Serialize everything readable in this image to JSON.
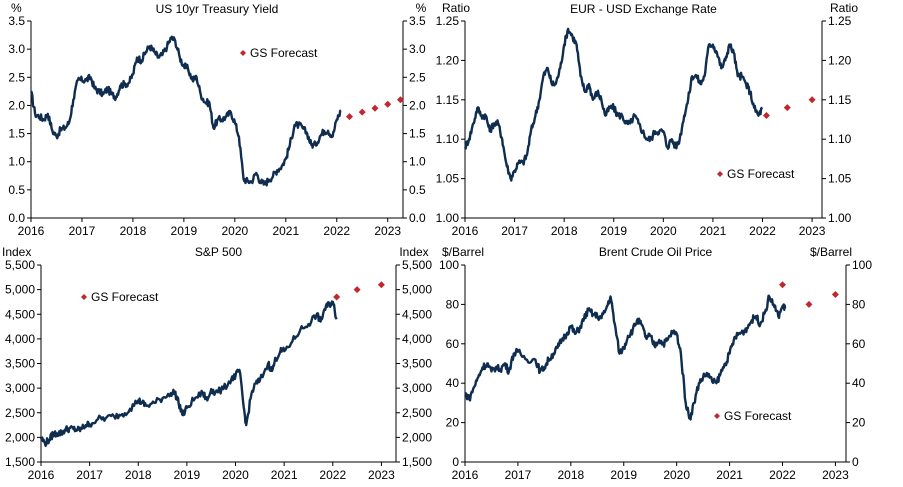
{
  "chart_data": [
    {
      "type": "line",
      "id": "ust",
      "title": "US 10yr Treasury Yield",
      "ylabel_left": "%",
      "ylabel_right": "%",
      "ylim": [
        0,
        3.5
      ],
      "yticks": [
        0,
        0.5,
        1,
        1.5,
        2,
        2.5,
        3,
        3.5
      ],
      "ytick_labels": [
        "0.0",
        "0.5",
        "1.0",
        "1.5",
        "2.0",
        "2.5",
        "3.0",
        "3.5"
      ],
      "xlim": [
        2016.0,
        2023.3
      ],
      "xticks": [
        2016,
        2017,
        2018,
        2019,
        2020,
        2021,
        2022,
        2023
      ],
      "xtick_labels": [
        "2016",
        "2017",
        "2018",
        "2019",
        "2020",
        "2021",
        "2022",
        "2023"
      ],
      "series_name": "US 10yr Treasury Yield",
      "series": [
        [
          2016.0,
          2.25
        ],
        [
          2016.08,
          1.85
        ],
        [
          2016.17,
          1.8
        ],
        [
          2016.25,
          1.75
        ],
        [
          2016.33,
          1.85
        ],
        [
          2016.42,
          1.55
        ],
        [
          2016.5,
          1.45
        ],
        [
          2016.58,
          1.57
        ],
        [
          2016.67,
          1.6
        ],
        [
          2016.75,
          1.7
        ],
        [
          2016.83,
          2.1
        ],
        [
          2016.92,
          2.45
        ],
        [
          2017.0,
          2.45
        ],
        [
          2017.08,
          2.45
        ],
        [
          2017.17,
          2.5
        ],
        [
          2017.25,
          2.3
        ],
        [
          2017.33,
          2.25
        ],
        [
          2017.42,
          2.2
        ],
        [
          2017.5,
          2.3
        ],
        [
          2017.58,
          2.2
        ],
        [
          2017.67,
          2.15
        ],
        [
          2017.75,
          2.35
        ],
        [
          2017.83,
          2.38
        ],
        [
          2017.92,
          2.4
        ],
        [
          2018.0,
          2.55
        ],
        [
          2018.08,
          2.85
        ],
        [
          2018.17,
          2.8
        ],
        [
          2018.25,
          2.95
        ],
        [
          2018.33,
          3.05
        ],
        [
          2018.42,
          2.95
        ],
        [
          2018.5,
          2.85
        ],
        [
          2018.58,
          2.9
        ],
        [
          2018.67,
          3.05
        ],
        [
          2018.75,
          3.2
        ],
        [
          2018.83,
          3.15
        ],
        [
          2018.92,
          2.85
        ],
        [
          2019.0,
          2.7
        ],
        [
          2019.08,
          2.65
        ],
        [
          2019.17,
          2.45
        ],
        [
          2019.25,
          2.5
        ],
        [
          2019.33,
          2.2
        ],
        [
          2019.42,
          2.05
        ],
        [
          2019.5,
          2.05
        ],
        [
          2019.58,
          1.6
        ],
        [
          2019.67,
          1.75
        ],
        [
          2019.75,
          1.75
        ],
        [
          2019.83,
          1.8
        ],
        [
          2019.92,
          1.88
        ],
        [
          2020.0,
          1.7
        ],
        [
          2020.08,
          1.45
        ],
        [
          2020.17,
          0.7
        ],
        [
          2020.25,
          0.65
        ],
        [
          2020.33,
          0.65
        ],
        [
          2020.42,
          0.8
        ],
        [
          2020.5,
          0.65
        ],
        [
          2020.58,
          0.6
        ],
        [
          2020.67,
          0.68
        ],
        [
          2020.75,
          0.75
        ],
        [
          2020.83,
          0.85
        ],
        [
          2020.92,
          0.92
        ],
        [
          2021.0,
          1.05
        ],
        [
          2021.08,
          1.3
        ],
        [
          2021.17,
          1.65
        ],
        [
          2021.25,
          1.65
        ],
        [
          2021.33,
          1.6
        ],
        [
          2021.42,
          1.5
        ],
        [
          2021.5,
          1.3
        ],
        [
          2021.58,
          1.3
        ],
        [
          2021.67,
          1.45
        ],
        [
          2021.75,
          1.55
        ],
        [
          2021.83,
          1.55
        ],
        [
          2021.92,
          1.45
        ],
        [
          2022.0,
          1.75
        ],
        [
          2022.08,
          1.9
        ]
      ],
      "forecast": [
        [
          2022.25,
          1.8
        ],
        [
          2022.5,
          1.88
        ],
        [
          2022.75,
          1.95
        ],
        [
          2023.0,
          2.02
        ],
        [
          2023.25,
          2.1
        ]
      ],
      "legend_label": "GS Forecast",
      "legend_anchor": "upper-right-of-center"
    },
    {
      "type": "line",
      "id": "eurusd",
      "title": "EUR - USD Exchange Rate",
      "ylabel_left": "Ratio",
      "ylabel_right": "Ratio",
      "ylim": [
        1.0,
        1.25
      ],
      "yticks": [
        1.0,
        1.05,
        1.1,
        1.15,
        1.2,
        1.25
      ],
      "ytick_labels": [
        "1.00",
        "1.05",
        "1.10",
        "1.15",
        "1.20",
        "1.25"
      ],
      "xlim": [
        2016.0,
        2023.2
      ],
      "xticks": [
        2016,
        2017,
        2018,
        2019,
        2020,
        2021,
        2022,
        2023
      ],
      "xtick_labels": [
        "2016",
        "2017",
        "2018",
        "2019",
        "2020",
        "2021",
        "2022",
        "2023"
      ],
      "series_name": "EUR - USD Exchange Rate",
      "series": [
        [
          2016.0,
          1.09
        ],
        [
          2016.08,
          1.1
        ],
        [
          2016.17,
          1.12
        ],
        [
          2016.25,
          1.14
        ],
        [
          2016.33,
          1.13
        ],
        [
          2016.42,
          1.13
        ],
        [
          2016.5,
          1.11
        ],
        [
          2016.58,
          1.12
        ],
        [
          2016.67,
          1.12
        ],
        [
          2016.75,
          1.1
        ],
        [
          2016.83,
          1.07
        ],
        [
          2016.92,
          1.05
        ],
        [
          2017.0,
          1.06
        ],
        [
          2017.08,
          1.07
        ],
        [
          2017.17,
          1.07
        ],
        [
          2017.25,
          1.08
        ],
        [
          2017.33,
          1.11
        ],
        [
          2017.42,
          1.13
        ],
        [
          2017.5,
          1.15
        ],
        [
          2017.58,
          1.18
        ],
        [
          2017.67,
          1.19
        ],
        [
          2017.75,
          1.17
        ],
        [
          2017.83,
          1.17
        ],
        [
          2017.92,
          1.19
        ],
        [
          2018.0,
          1.22
        ],
        [
          2018.08,
          1.24
        ],
        [
          2018.17,
          1.23
        ],
        [
          2018.25,
          1.22
        ],
        [
          2018.33,
          1.18
        ],
        [
          2018.42,
          1.16
        ],
        [
          2018.5,
          1.17
        ],
        [
          2018.58,
          1.15
        ],
        [
          2018.67,
          1.16
        ],
        [
          2018.75,
          1.15
        ],
        [
          2018.83,
          1.13
        ],
        [
          2018.92,
          1.14
        ],
        [
          2019.0,
          1.14
        ],
        [
          2019.08,
          1.13
        ],
        [
          2019.17,
          1.13
        ],
        [
          2019.25,
          1.12
        ],
        [
          2019.33,
          1.12
        ],
        [
          2019.42,
          1.13
        ],
        [
          2019.5,
          1.12
        ],
        [
          2019.58,
          1.11
        ],
        [
          2019.67,
          1.1
        ],
        [
          2019.75,
          1.1
        ],
        [
          2019.83,
          1.11
        ],
        [
          2019.92,
          1.11
        ],
        [
          2020.0,
          1.11
        ],
        [
          2020.08,
          1.09
        ],
        [
          2020.17,
          1.1
        ],
        [
          2020.25,
          1.09
        ],
        [
          2020.33,
          1.1
        ],
        [
          2020.42,
          1.13
        ],
        [
          2020.5,
          1.15
        ],
        [
          2020.58,
          1.18
        ],
        [
          2020.67,
          1.18
        ],
        [
          2020.75,
          1.17
        ],
        [
          2020.83,
          1.18
        ],
        [
          2020.92,
          1.22
        ],
        [
          2021.0,
          1.22
        ],
        [
          2021.08,
          1.21
        ],
        [
          2021.17,
          1.19
        ],
        [
          2021.25,
          1.2
        ],
        [
          2021.33,
          1.22
        ],
        [
          2021.42,
          1.21
        ],
        [
          2021.5,
          1.18
        ],
        [
          2021.58,
          1.18
        ],
        [
          2021.67,
          1.17
        ],
        [
          2021.75,
          1.16
        ],
        [
          2021.83,
          1.14
        ],
        [
          2021.92,
          1.13
        ],
        [
          2022.0,
          1.14
        ]
      ],
      "forecast": [
        [
          2022.08,
          1.13
        ],
        [
          2022.5,
          1.14
        ],
        [
          2023.0,
          1.15
        ]
      ],
      "legend_label": "GS Forecast",
      "legend_anchor": "lower-right"
    },
    {
      "type": "line",
      "id": "spx",
      "title": "S&P 500",
      "ylabel_left": "Index",
      "ylabel_right": "Index",
      "ylim": [
        1500,
        5500
      ],
      "yticks": [
        1500,
        2000,
        2500,
        3000,
        3500,
        4000,
        4500,
        5000,
        5500
      ],
      "ytick_labels": [
        "1,500",
        "2,000",
        "2,500",
        "3,000",
        "3,500",
        "4,000",
        "4,500",
        "5,000",
        "5,500"
      ],
      "xlim": [
        2016.0,
        2023.3
      ],
      "xticks": [
        2016,
        2017,
        2018,
        2019,
        2020,
        2021,
        2022,
        2023
      ],
      "xtick_labels": [
        "2016",
        "2017",
        "2018",
        "2019",
        "2020",
        "2021",
        "2022",
        "2023"
      ],
      "series_name": "S&P 500",
      "series": [
        [
          2016.0,
          2000
        ],
        [
          2016.08,
          1880
        ],
        [
          2016.17,
          1950
        ],
        [
          2016.25,
          2070
        ],
        [
          2016.33,
          2080
        ],
        [
          2016.42,
          2090
        ],
        [
          2016.5,
          2160
        ],
        [
          2016.58,
          2180
        ],
        [
          2016.67,
          2170
        ],
        [
          2016.75,
          2150
        ],
        [
          2016.83,
          2170
        ],
        [
          2016.92,
          2250
        ],
        [
          2017.0,
          2270
        ],
        [
          2017.17,
          2370
        ],
        [
          2017.33,
          2390
        ],
        [
          2017.5,
          2430
        ],
        [
          2017.67,
          2470
        ],
        [
          2017.83,
          2580
        ],
        [
          2018.0,
          2750
        ],
        [
          2018.08,
          2700
        ],
        [
          2018.17,
          2640
        ],
        [
          2018.33,
          2700
        ],
        [
          2018.5,
          2800
        ],
        [
          2018.67,
          2900
        ],
        [
          2018.75,
          2920
        ],
        [
          2018.83,
          2700
        ],
        [
          2018.92,
          2450
        ],
        [
          2019.0,
          2600
        ],
        [
          2019.17,
          2800
        ],
        [
          2019.33,
          2900
        ],
        [
          2019.42,
          2750
        ],
        [
          2019.5,
          2980
        ],
        [
          2019.58,
          2900
        ],
        [
          2019.75,
          2980
        ],
        [
          2019.92,
          3200
        ],
        [
          2020.0,
          3250
        ],
        [
          2020.08,
          3370
        ],
        [
          2020.17,
          2600
        ],
        [
          2020.22,
          2250
        ],
        [
          2020.33,
          2900
        ],
        [
          2020.42,
          3100
        ],
        [
          2020.5,
          3150
        ],
        [
          2020.67,
          3500
        ],
        [
          2020.75,
          3350
        ],
        [
          2020.83,
          3600
        ],
        [
          2020.92,
          3750
        ],
        [
          2021.0,
          3750
        ],
        [
          2021.17,
          3950
        ],
        [
          2021.33,
          4180
        ],
        [
          2021.5,
          4300
        ],
        [
          2021.67,
          4500
        ],
        [
          2021.75,
          4350
        ],
        [
          2021.83,
          4600
        ],
        [
          2021.92,
          4700
        ],
        [
          2022.0,
          4750
        ],
        [
          2022.08,
          4400
        ]
      ],
      "forecast": [
        [
          2022.08,
          4850
        ],
        [
          2022.5,
          5000
        ],
        [
          2023.0,
          5100
        ]
      ],
      "legend_label": "GS Forecast",
      "legend_anchor": "upper-left"
    },
    {
      "type": "line",
      "id": "brent",
      "title": "Brent Crude Oil Price",
      "ylabel_left": "$/Barrel",
      "ylabel_right": "$/Barrel",
      "ylim": [
        0,
        100
      ],
      "yticks": [
        0,
        20,
        40,
        60,
        80,
        100
      ],
      "ytick_labels": [
        "0",
        "20",
        "40",
        "60",
        "80",
        "100"
      ],
      "xlim": [
        2016.0,
        2023.2
      ],
      "xticks": [
        2016,
        2017,
        2018,
        2019,
        2020,
        2021,
        2022,
        2023
      ],
      "xtick_labels": [
        "2016",
        "2017",
        "2018",
        "2019",
        "2020",
        "2021",
        "2022",
        "2023"
      ],
      "series_name": "Brent Crude Oil Price",
      "series": [
        [
          2016.0,
          35
        ],
        [
          2016.08,
          32
        ],
        [
          2016.17,
          38
        ],
        [
          2016.25,
          43
        ],
        [
          2016.33,
          48
        ],
        [
          2016.42,
          50
        ],
        [
          2016.5,
          46
        ],
        [
          2016.58,
          48
        ],
        [
          2016.67,
          47
        ],
        [
          2016.75,
          50
        ],
        [
          2016.83,
          46
        ],
        [
          2016.92,
          55
        ],
        [
          2017.0,
          56
        ],
        [
          2017.17,
          52
        ],
        [
          2017.33,
          52
        ],
        [
          2017.42,
          46
        ],
        [
          2017.5,
          48
        ],
        [
          2017.58,
          52
        ],
        [
          2017.67,
          55
        ],
        [
          2017.75,
          58
        ],
        [
          2017.83,
          62
        ],
        [
          2017.92,
          65
        ],
        [
          2018.0,
          69
        ],
        [
          2018.08,
          65
        ],
        [
          2018.17,
          68
        ],
        [
          2018.25,
          73
        ],
        [
          2018.33,
          77
        ],
        [
          2018.42,
          75
        ],
        [
          2018.5,
          74
        ],
        [
          2018.58,
          73
        ],
        [
          2018.67,
          78
        ],
        [
          2018.75,
          84
        ],
        [
          2018.83,
          70
        ],
        [
          2018.92,
          55
        ],
        [
          2019.0,
          58
        ],
        [
          2019.08,
          64
        ],
        [
          2019.17,
          67
        ],
        [
          2019.25,
          72
        ],
        [
          2019.33,
          70
        ],
        [
          2019.42,
          63
        ],
        [
          2019.5,
          64
        ],
        [
          2019.58,
          59
        ],
        [
          2019.67,
          62
        ],
        [
          2019.75,
          60
        ],
        [
          2019.83,
          62
        ],
        [
          2019.92,
          66
        ],
        [
          2020.0,
          65
        ],
        [
          2020.08,
          55
        ],
        [
          2020.17,
          30
        ],
        [
          2020.25,
          22
        ],
        [
          2020.33,
          30
        ],
        [
          2020.42,
          40
        ],
        [
          2020.5,
          43
        ],
        [
          2020.58,
          45
        ],
        [
          2020.67,
          41
        ],
        [
          2020.75,
          40
        ],
        [
          2020.83,
          45
        ],
        [
          2020.92,
          50
        ],
        [
          2021.0,
          55
        ],
        [
          2021.08,
          62
        ],
        [
          2021.17,
          65
        ],
        [
          2021.25,
          66
        ],
        [
          2021.33,
          68
        ],
        [
          2021.42,
          72
        ],
        [
          2021.5,
          74
        ],
        [
          2021.58,
          70
        ],
        [
          2021.67,
          76
        ],
        [
          2021.75,
          84
        ],
        [
          2021.83,
          80
        ],
        [
          2021.92,
          74
        ],
        [
          2022.0,
          79
        ],
        [
          2022.05,
          78
        ]
      ],
      "forecast": [
        [
          2022.0,
          90
        ],
        [
          2022.5,
          80
        ],
        [
          2023.0,
          85
        ]
      ],
      "legend_label": "GS Forecast",
      "legend_anchor": "lower-right"
    }
  ],
  "colors": {
    "series_line": "#0f2d4f",
    "forecast_marker": "#c0282d",
    "axis": "#000000"
  }
}
